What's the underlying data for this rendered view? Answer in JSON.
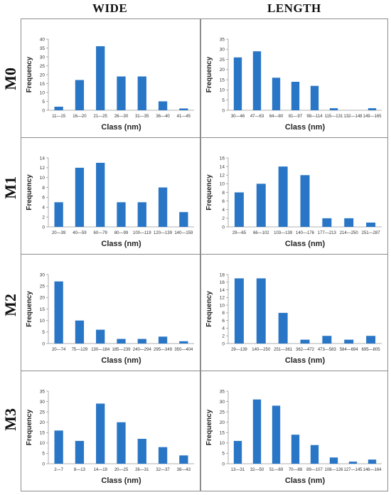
{
  "headers": {
    "wide": "WIDE",
    "length": "LENGTH"
  },
  "rows": [
    "M0",
    "M1",
    "M2",
    "M3"
  ],
  "style": {
    "bar_color": "#2a76c6",
    "axis_color": "#999999"
  },
  "chart_data": [
    {
      "id": "m0-wide",
      "type": "bar",
      "ylabel": "Frequency",
      "xlabel": "Class (nm)",
      "ylim": [
        0,
        40
      ],
      "yticks": [
        0,
        5,
        10,
        15,
        20,
        25,
        30,
        35,
        40
      ],
      "categories": [
        "11—15",
        "16—20",
        "21—25",
        "26—30",
        "31—35",
        "36—40",
        "41—45"
      ],
      "values": [
        2,
        17,
        36,
        19,
        19,
        5,
        1
      ]
    },
    {
      "id": "m0-length",
      "type": "bar",
      "ylabel": "Frequency",
      "xlabel": "Class (nm)",
      "ylim": [
        0,
        35
      ],
      "yticks": [
        0,
        5,
        10,
        15,
        20,
        25,
        30,
        35
      ],
      "categories": [
        "30—46",
        "47—63",
        "64—80",
        "81—97",
        "98—114",
        "115—131",
        "132—148",
        "149—165"
      ],
      "values": [
        26,
        29,
        16,
        14,
        12,
        1,
        0,
        1
      ]
    },
    {
      "id": "m1-wide",
      "type": "bar",
      "ylabel": "Frequency",
      "xlabel": "Class (nm)",
      "ylim": [
        0,
        14
      ],
      "yticks": [
        0,
        2,
        4,
        6,
        8,
        10,
        12,
        14
      ],
      "categories": [
        "20—39",
        "40—59",
        "60—79",
        "80—99",
        "100—119",
        "120—139",
        "140—159"
      ],
      "values": [
        5,
        12,
        13,
        5,
        5,
        8,
        3
      ]
    },
    {
      "id": "m1-length",
      "type": "bar",
      "ylabel": "Frequency",
      "xlabel": "Class (nm)",
      "ylim": [
        0,
        16
      ],
      "yticks": [
        0,
        2,
        4,
        6,
        8,
        10,
        12,
        14,
        16
      ],
      "categories": [
        "29—65",
        "66—102",
        "103—139",
        "140—176",
        "177—213",
        "214—250",
        "251—287"
      ],
      "values": [
        8,
        10,
        14,
        12,
        2,
        2,
        1
      ]
    },
    {
      "id": "m2-wide",
      "type": "bar",
      "ylabel": "Frequency",
      "xlabel": "Class (nm)",
      "ylim": [
        0,
        30
      ],
      "yticks": [
        0,
        5,
        10,
        15,
        20,
        25,
        30
      ],
      "categories": [
        "20—74",
        "75—129",
        "130—184",
        "185—239",
        "240—294",
        "295—349",
        "350—404"
      ],
      "values": [
        27,
        10,
        6,
        2,
        2,
        3,
        1
      ]
    },
    {
      "id": "m2-length",
      "type": "bar",
      "ylabel": "Frequency",
      "xlabel": "Class (nm)",
      "ylim": [
        0,
        18
      ],
      "yticks": [
        0,
        2,
        4,
        6,
        8,
        10,
        12,
        14,
        16,
        18
      ],
      "categories": [
        "29—139",
        "140—250",
        "251—361",
        "362—472",
        "473—583",
        "584—694",
        "695—805"
      ],
      "values": [
        17,
        17,
        8,
        1,
        2,
        1,
        2
      ]
    },
    {
      "id": "m3-wide",
      "type": "bar",
      "ylabel": "Frequency",
      "xlabel": "Class (nm)",
      "ylim": [
        0,
        35
      ],
      "yticks": [
        0,
        5,
        10,
        15,
        20,
        25,
        30,
        35
      ],
      "categories": [
        "2—7",
        "8—13",
        "14—19",
        "20—25",
        "26—31",
        "32—37",
        "38—43"
      ],
      "values": [
        16,
        11,
        29,
        20,
        12,
        8,
        4
      ]
    },
    {
      "id": "m3-length",
      "type": "bar",
      "ylabel": "Frequency",
      "xlabel": "Class (nm)",
      "ylim": [
        0,
        35
      ],
      "yticks": [
        0,
        5,
        10,
        15,
        20,
        25,
        30,
        35
      ],
      "categories": [
        "13—31",
        "32—50",
        "51—69",
        "70—88",
        "89—107",
        "108—126",
        "127—145",
        "146—164"
      ],
      "values": [
        11,
        31,
        28,
        14,
        9,
        3,
        1,
        2
      ]
    }
  ]
}
